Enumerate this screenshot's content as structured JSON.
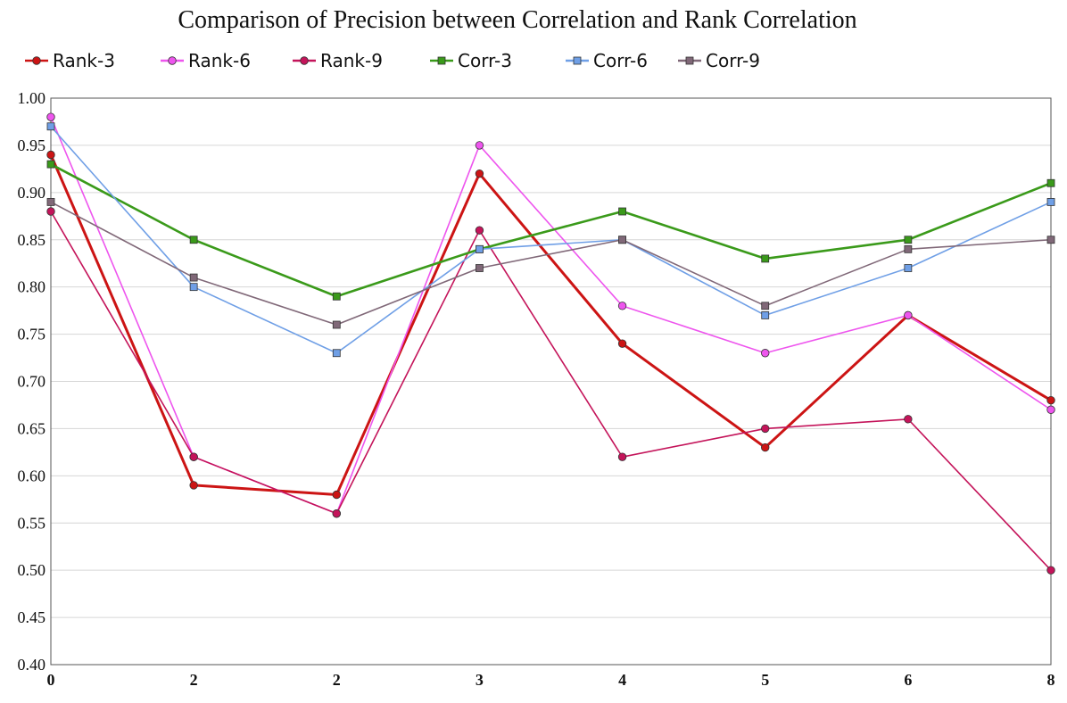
{
  "chart_data": {
    "type": "line",
    "title": "Comparison of Precision between Correlation and Rank Correlation",
    "xlabel": "",
    "ylabel": "",
    "categories": [
      "0",
      "2",
      "2",
      "3",
      "4",
      "5",
      "6",
      "8"
    ],
    "ylim": [
      0.4,
      1.0
    ],
    "yticks": [
      "0.40",
      "0.45",
      "0.50",
      "0.55",
      "0.60",
      "0.65",
      "0.70",
      "0.75",
      "0.80",
      "0.85",
      "0.90",
      "0.95",
      "1.00"
    ],
    "grid": true,
    "legend_position": "top-left",
    "series": [
      {
        "name": "Rank-3",
        "color": "#cc1414",
        "marker": "circle",
        "values": [
          0.94,
          0.59,
          0.58,
          0.92,
          0.74,
          0.63,
          0.77,
          0.68
        ]
      },
      {
        "name": "Rank-6",
        "color": "#ee55ee",
        "marker": "circle",
        "values": [
          0.98,
          0.62,
          0.56,
          0.95,
          0.78,
          0.73,
          0.77,
          0.67
        ]
      },
      {
        "name": "Rank-9",
        "color": "#c4145a",
        "marker": "circle",
        "values": [
          0.88,
          0.62,
          0.56,
          0.86,
          0.62,
          0.65,
          0.66,
          0.5
        ]
      },
      {
        "name": "Corr-3",
        "color": "#3a9a1a",
        "marker": "square",
        "values": [
          0.93,
          0.85,
          0.79,
          0.84,
          0.88,
          0.83,
          0.85,
          0.91
        ]
      },
      {
        "name": "Corr-6",
        "color": "#6f9fe6",
        "marker": "square",
        "values": [
          0.97,
          0.8,
          0.73,
          0.84,
          0.85,
          0.77,
          0.82,
          0.89
        ]
      },
      {
        "name": "Corr-9",
        "color": "#806878",
        "marker": "square",
        "values": [
          0.89,
          0.81,
          0.76,
          0.82,
          0.85,
          0.78,
          0.84,
          0.85
        ]
      }
    ]
  }
}
